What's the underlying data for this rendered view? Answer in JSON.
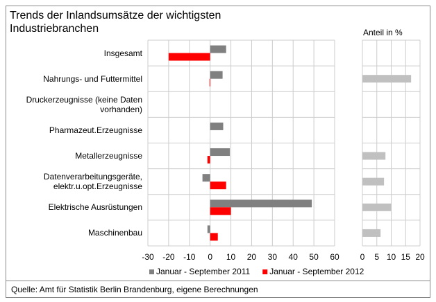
{
  "chart_data": [
    {
      "type": "bar",
      "orientation": "horizontal",
      "title": "Trends der Inlandsumsätze  der wichtigsten\nIndustriebranchen",
      "categories": [
        "Insgesamt",
        "Nahrungs- und Futtermittel",
        "Druckerzeugnisse (keine Daten\nvorhanden)",
        "Pharmazeut.Erzeugnisse",
        "Metallerzeugnisse",
        "Datenverarbeitungsgeräte,\nelektr.u.opt.Erzeugnisse",
        "Elektrische Ausrüstungen",
        "Maschinenbau"
      ],
      "series": [
        {
          "name": "Januar - September 2011",
          "color": "#808080",
          "values": [
            7.7,
            6,
            null,
            6.3,
            9.5,
            -3.7,
            49,
            -1.3
          ]
        },
        {
          "name": "Januar - September 2012",
          "color": "#ff0000",
          "values": [
            -20,
            -0.3,
            null,
            null,
            -1.3,
            7.7,
            10,
            3.7
          ]
        }
      ],
      "xlim": [
        -30,
        60
      ],
      "xticks": [
        -30,
        -20,
        -10,
        0,
        10,
        20,
        30,
        40,
        50,
        60
      ],
      "grid": true,
      "legend": "bottom"
    },
    {
      "type": "bar",
      "orientation": "horizontal",
      "title": "Anteil  in %",
      "series": [
        {
          "color": "#c0c0c0",
          "values": [
            null,
            16.9,
            null,
            null,
            8,
            7.5,
            10.1,
            6.3
          ]
        }
      ],
      "xlim": [
        0,
        20
      ],
      "xticks": [
        0,
        5,
        10,
        15,
        20
      ],
      "grid": true
    }
  ],
  "source": "Quelle: Amt für Statistik Berlin Brandenburg, eigene Berechnungen"
}
